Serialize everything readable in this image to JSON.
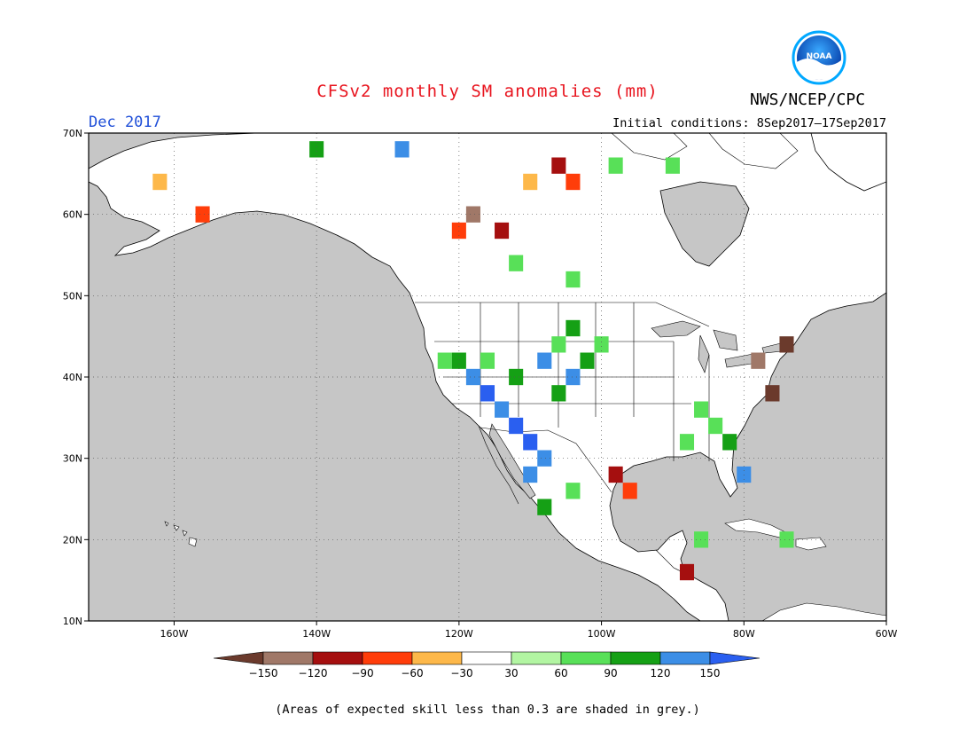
{
  "title": "CFSv2 monthly SM anomalies (mm)",
  "valid_period": "Dec 2017",
  "initial_conditions": "Initial conditions: 8Sep2017–17Sep2017",
  "agency": "NWS/NCEP/CPC",
  "logo_text": "NOAA",
  "footnote": "(Areas of expected skill less than 0.3 are shaded in grey.)",
  "map": {
    "lon_range": [
      -172,
      -60
    ],
    "lat_range": [
      10,
      70
    ],
    "lon_ticks": [
      "160W",
      "140W",
      "120W",
      "100W",
      "80W",
      "60W"
    ],
    "lat_ticks": [
      "70N",
      "60N",
      "50N",
      "40N",
      "30N",
      "20N",
      "10N"
    ],
    "ocean_color": "#c6c6c6",
    "land_color": "#ffffff",
    "skill_mask_color": "#c6c6c6"
  },
  "legend": {
    "labels": [
      "−150",
      "−120",
      "−90",
      "−60",
      "−30",
      "30",
      "60",
      "90",
      "120",
      "150"
    ],
    "colors": [
      "#6b3a2c",
      "#a07868",
      "#a50f0f",
      "#ff3d0a",
      "#fdb84a",
      "#ffffff",
      "#b2f5a2",
      "#58e058",
      "#15a015",
      "#3c8ee6",
      "#2a5ff0"
    ]
  },
  "anomaly_cells": [
    {
      "lon": -122,
      "lat": 42,
      "v": 70
    },
    {
      "lon": -120,
      "lat": 42,
      "v": 100
    },
    {
      "lon": -118,
      "lat": 40,
      "v": 130
    },
    {
      "lon": -116,
      "lat": 38,
      "v": 160
    },
    {
      "lon": -114,
      "lat": 36,
      "v": 130
    },
    {
      "lon": -112,
      "lat": 34,
      "v": 160
    },
    {
      "lon": -110,
      "lat": 32,
      "v": 160
    },
    {
      "lon": -108,
      "lat": 30,
      "v": 130
    },
    {
      "lon": -110,
      "lat": 28,
      "v": 130
    },
    {
      "lon": -106,
      "lat": 38,
      "v": 100
    },
    {
      "lon": -104,
      "lat": 40,
      "v": 130
    },
    {
      "lon": -102,
      "lat": 42,
      "v": 100
    },
    {
      "lon": -106,
      "lat": 44,
      "v": 70
    },
    {
      "lon": -104,
      "lat": 46,
      "v": 100
    },
    {
      "lon": -100,
      "lat": 44,
      "v": 70
    },
    {
      "lon": -108,
      "lat": 42,
      "v": 130
    },
    {
      "lon": -112,
      "lat": 40,
      "v": 100
    },
    {
      "lon": -116,
      "lat": 42,
      "v": 70
    },
    {
      "lon": -108,
      "lat": 24,
      "v": 100
    },
    {
      "lon": -104,
      "lat": 26,
      "v": 70
    },
    {
      "lon": -98,
      "lat": 28,
      "v": -100
    },
    {
      "lon": -96,
      "lat": 26,
      "v": -70
    },
    {
      "lon": -84,
      "lat": 34,
      "v": 70
    },
    {
      "lon": -82,
      "lat": 32,
      "v": 100
    },
    {
      "lon": -86,
      "lat": 36,
      "v": 70
    },
    {
      "lon": -88,
      "lat": 32,
      "v": 70
    },
    {
      "lon": -80,
      "lat": 28,
      "v": 130
    },
    {
      "lon": -78,
      "lat": 42,
      "v": -130
    },
    {
      "lon": -74,
      "lat": 44,
      "v": -160
    },
    {
      "lon": -76,
      "lat": 38,
      "v": -160
    },
    {
      "lon": -106,
      "lat": 66,
      "v": -100
    },
    {
      "lon": -104,
      "lat": 64,
      "v": -70
    },
    {
      "lon": -110,
      "lat": 64,
      "v": -40
    },
    {
      "lon": -118,
      "lat": 60,
      "v": -130
    },
    {
      "lon": -114,
      "lat": 58,
      "v": -100
    },
    {
      "lon": -120,
      "lat": 58,
      "v": -70
    },
    {
      "lon": -156,
      "lat": 60,
      "v": -70
    },
    {
      "lon": -162,
      "lat": 64,
      "v": -40
    },
    {
      "lon": -128,
      "lat": 68,
      "v": 130
    },
    {
      "lon": -140,
      "lat": 68,
      "v": 100
    },
    {
      "lon": -98,
      "lat": 66,
      "v": 70
    },
    {
      "lon": -90,
      "lat": 66,
      "v": 70
    },
    {
      "lon": -104,
      "lat": 52,
      "v": 70
    },
    {
      "lon": -112,
      "lat": 54,
      "v": 70
    },
    {
      "lon": -74,
      "lat": 20,
      "v": 70
    },
    {
      "lon": -88,
      "lat": 16,
      "v": -100
    },
    {
      "lon": -86,
      "lat": 20,
      "v": 70
    }
  ]
}
